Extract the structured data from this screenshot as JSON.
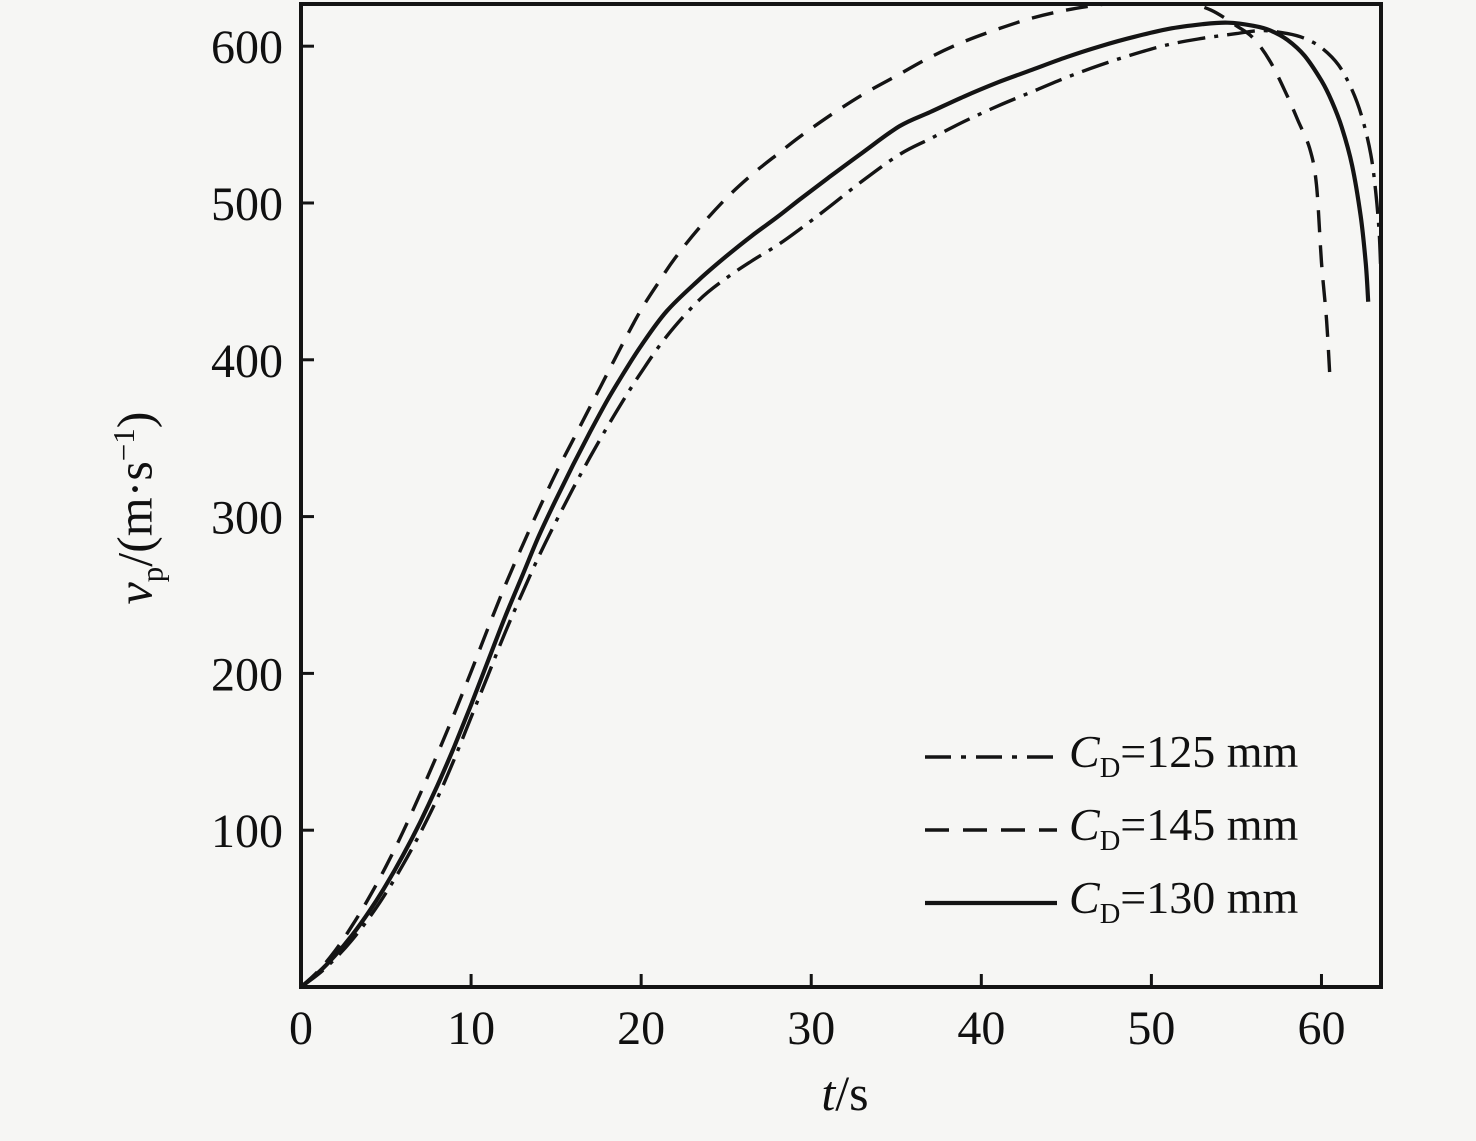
{
  "figure": {
    "background": "#f6f6f4",
    "line_color": "#141414",
    "text_color": "#101010"
  },
  "chart_data": {
    "type": "line",
    "title": "",
    "xlabel": "t/s",
    "ylabel": "vp/(m·s−1)",
    "xlabel_parts": {
      "var": "t",
      "rest": "/s"
    },
    "ylabel_parts": {
      "var": "v",
      "sub": "p",
      "mid": "/(m·s",
      "sup": "−1",
      "end": ")"
    },
    "xlim": [
      0,
      63.5
    ],
    "ylim": [
      0,
      626.9
    ],
    "x_ticks": [
      0,
      10,
      20,
      30,
      40,
      50,
      60
    ],
    "y_ticks": [
      100,
      200,
      300,
      400,
      500,
      600
    ],
    "grid": false,
    "legend_position": "inside lower-right",
    "series": [
      {
        "id": "cd125",
        "line_style": "dashdot",
        "legend": {
          "var": "C",
          "sub": "D",
          "value": "=125 mm"
        },
        "points": [
          [
            0,
            0
          ],
          [
            1,
            8
          ],
          [
            2,
            18
          ],
          [
            3,
            30
          ],
          [
            4,
            44
          ],
          [
            5,
            60
          ],
          [
            6,
            78
          ],
          [
            7,
            98
          ],
          [
            8,
            120
          ],
          [
            9,
            145
          ],
          [
            10,
            172
          ],
          [
            11,
            199
          ],
          [
            12,
            226
          ],
          [
            13,
            251
          ],
          [
            14,
            275
          ],
          [
            15,
            297
          ],
          [
            16,
            318
          ],
          [
            17,
            338
          ],
          [
            18,
            357
          ],
          [
            19,
            375
          ],
          [
            20,
            392
          ],
          [
            21.5,
            415
          ],
          [
            23.4,
            438
          ],
          [
            25,
            452
          ],
          [
            26.5,
            463
          ],
          [
            28,
            473
          ],
          [
            29.3,
            483
          ],
          [
            31,
            497
          ],
          [
            33,
            514
          ],
          [
            35.2,
            531
          ],
          [
            37,
            541
          ],
          [
            39,
            552
          ],
          [
            41,
            562
          ],
          [
            43,
            571
          ],
          [
            45,
            580
          ],
          [
            47,
            588
          ],
          [
            49,
            595
          ],
          [
            51,
            601
          ],
          [
            53,
            605
          ],
          [
            55,
            608
          ],
          [
            56.5,
            610
          ],
          [
            58,
            608
          ],
          [
            59,
            605
          ],
          [
            60,
            599
          ],
          [
            61,
            588
          ],
          [
            61.8,
            572
          ],
          [
            62.4,
            554
          ],
          [
            62.9,
            531
          ],
          [
            63.2,
            506
          ],
          [
            63.4,
            480
          ],
          [
            63.5,
            452
          ]
        ]
      },
      {
        "id": "cd145",
        "line_style": "dashed",
        "legend": {
          "var": "C",
          "sub": "D",
          "value": "=145 mm"
        },
        "points": [
          [
            0,
            0
          ],
          [
            1,
            10
          ],
          [
            2,
            23
          ],
          [
            3,
            39
          ],
          [
            4,
            57
          ],
          [
            5,
            77
          ],
          [
            6,
            99
          ],
          [
            7,
            123
          ],
          [
            8,
            148
          ],
          [
            9,
            174
          ],
          [
            10,
            201
          ],
          [
            11,
            229
          ],
          [
            12,
            256
          ],
          [
            13,
            281
          ],
          [
            14,
            305
          ],
          [
            15,
            328
          ],
          [
            16,
            349
          ],
          [
            17,
            370
          ],
          [
            18,
            391
          ],
          [
            19,
            412
          ],
          [
            20,
            432
          ],
          [
            21,
            449
          ],
          [
            22,
            465
          ],
          [
            23.4,
            484
          ],
          [
            25,
            503
          ],
          [
            26.5,
            518
          ],
          [
            28,
            531
          ],
          [
            29.3,
            542
          ],
          [
            31,
            555
          ],
          [
            33,
            569
          ],
          [
            35,
            581
          ],
          [
            37,
            593
          ],
          [
            39,
            603
          ],
          [
            41,
            611
          ],
          [
            43,
            618
          ],
          [
            45,
            623
          ],
          [
            47,
            626.5
          ],
          [
            49,
            629
          ],
          [
            50.5,
            630
          ],
          [
            52,
            628
          ],
          [
            53.5,
            623
          ],
          [
            55,
            613
          ],
          [
            56,
            605
          ],
          [
            57,
            590
          ],
          [
            58,
            568
          ],
          [
            58.6,
            553
          ],
          [
            59.3,
            535
          ],
          [
            59.7,
            512
          ],
          [
            60,
            462
          ],
          [
            60.3,
            425
          ],
          [
            60.5,
            388
          ]
        ]
      },
      {
        "id": "cd130",
        "line_style": "solid",
        "legend": {
          "var": "C",
          "sub": "D",
          "value": "=130 mm"
        },
        "points": [
          [
            0,
            0
          ],
          [
            1,
            9
          ],
          [
            2,
            20
          ],
          [
            3,
            33
          ],
          [
            4,
            48
          ],
          [
            5,
            65
          ],
          [
            6,
            84
          ],
          [
            7,
            105
          ],
          [
            8,
            128
          ],
          [
            9,
            153
          ],
          [
            10,
            180
          ],
          [
            11,
            208
          ],
          [
            12,
            236
          ],
          [
            13,
            262
          ],
          [
            14,
            288
          ],
          [
            15,
            311
          ],
          [
            16,
            333
          ],
          [
            17,
            354
          ],
          [
            18,
            374
          ],
          [
            19,
            392
          ],
          [
            20,
            409
          ],
          [
            21.5,
            431
          ],
          [
            23.4,
            451
          ],
          [
            25,
            466
          ],
          [
            26.5,
            479
          ],
          [
            28,
            491
          ],
          [
            29.3,
            502
          ],
          [
            31,
            516
          ],
          [
            33,
            532
          ],
          [
            35.2,
            549
          ],
          [
            37,
            558
          ],
          [
            39,
            568
          ],
          [
            41,
            577
          ],
          [
            43,
            585
          ],
          [
            45,
            593
          ],
          [
            47,
            600
          ],
          [
            49,
            606
          ],
          [
            51,
            611
          ],
          [
            53,
            614
          ],
          [
            54.5,
            615
          ],
          [
            56,
            613
          ],
          [
            57,
            610
          ],
          [
            58,
            604
          ],
          [
            59,
            594
          ],
          [
            60,
            578
          ],
          [
            60.6,
            565
          ],
          [
            61.2,
            548
          ],
          [
            61.8,
            524
          ],
          [
            62.3,
            492
          ],
          [
            62.6,
            462
          ],
          [
            62.75,
            437
          ]
        ]
      }
    ]
  }
}
